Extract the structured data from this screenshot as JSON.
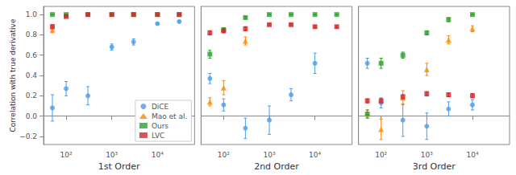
{
  "chart_data": [
    {
      "type": "scatter",
      "xlabel": "1st Order",
      "ylabel": "Correlation with true derivative",
      "log": "x",
      "grid": false,
      "legend": "lower right",
      "xlim": [
        32,
        65000
      ],
      "xticks": [
        {
          "value": 100,
          "label": "10²"
        },
        {
          "value": 1000,
          "label": "10³"
        },
        {
          "value": 10000,
          "label": "10⁴"
        }
      ],
      "ylim": [
        -0.28,
        1.08
      ],
      "yticks": [
        {
          "value": -0.2,
          "label": "−0.2"
        },
        {
          "value": 0,
          "label": "0.0"
        },
        0.2,
        0.4,
        0.6,
        0.8,
        {
          "value": 1,
          "label": "1.0"
        }
      ],
      "x": [
        50,
        100,
        300,
        1000,
        3000,
        10000,
        30000
      ],
      "series": [
        {
          "name": "DiCE",
          "color": "#4c9be8",
          "marker": "circle",
          "values": [
            0.08,
            0.27,
            0.2,
            0.68,
            0.73,
            0.91,
            0.93
          ],
          "errors": [
            0.13,
            0.07,
            0.09,
            0.03,
            0.03,
            0.01,
            0.01
          ]
        },
        {
          "name": "Mao et al.",
          "color": "#ff8800",
          "marker": "triangle",
          "values": [
            0.85,
            null,
            null,
            null,
            null,
            null,
            null
          ],
          "errors": [
            0.03,
            null,
            null,
            null,
            null,
            null,
            null
          ]
        },
        {
          "name": "Ours",
          "color": "#2ca02c",
          "marker": "square",
          "values": [
            1.0,
            1.0,
            1.0,
            1.0,
            1.0,
            1.0,
            1.0
          ],
          "errors": [
            0.002,
            0.001,
            0.001,
            0.0,
            0.0,
            0.0,
            0.0
          ]
        },
        {
          "name": "LVC",
          "color": "#d62728",
          "marker": "square",
          "values": [
            0.88,
            0.98,
            1.0,
            1.0,
            1.0,
            1.0,
            1.0
          ],
          "errors": [
            0.02,
            0.01,
            0.002,
            0.001,
            0.0,
            0.0,
            0.0
          ]
        }
      ]
    },
    {
      "type": "scatter",
      "xlabel": "2nd Order",
      "log": "x",
      "grid": false,
      "tick_labels": "x",
      "xlim": [
        32,
        65000
      ],
      "xticks": [
        {
          "value": 100,
          "label": "10²"
        },
        {
          "value": 1000,
          "label": "10³"
        },
        {
          "value": 10000,
          "label": "10⁴"
        }
      ],
      "ylim": [
        -0.28,
        1.08
      ],
      "yticks": [
        {
          "value": -0.2,
          "label": "−0.2"
        },
        {
          "value": 0,
          "label": "0.0"
        },
        0.2,
        0.4,
        0.6,
        0.8,
        {
          "value": 1,
          "label": "1.0"
        }
      ],
      "x": [
        50,
        100,
        300,
        1000,
        3000,
        10000,
        30000
      ],
      "series": [
        {
          "name": "DiCE",
          "color": "#4c9be8",
          "marker": "circle",
          "values": [
            0.37,
            0.11,
            -0.12,
            -0.04,
            0.21,
            0.52,
            null
          ],
          "errors": [
            0.05,
            0.06,
            0.1,
            0.14,
            0.06,
            0.1,
            null
          ]
        },
        {
          "name": "Mao et al.",
          "color": "#ff8800",
          "marker": "triangle",
          "values": [
            0.14,
            0.28,
            0.74,
            null,
            null,
            null,
            null
          ],
          "errors": [
            0.04,
            0.07,
            0.04,
            null,
            null,
            null,
            null
          ]
        },
        {
          "name": "Ours",
          "color": "#2ca02c",
          "marker": "square",
          "values": [
            0.61,
            0.85,
            0.97,
            1.0,
            1.0,
            1.0,
            1.0
          ],
          "errors": [
            0.04,
            0.02,
            0.01,
            0.001,
            0.001,
            0.001,
            0.001
          ]
        },
        {
          "name": "LVC",
          "color": "#d62728",
          "marker": "square",
          "values": [
            0.82,
            0.84,
            0.86,
            0.9,
            0.9,
            0.88,
            0.88
          ],
          "errors": [
            0.02,
            0.02,
            0.02,
            0.01,
            0.01,
            0.01,
            0.01
          ]
        }
      ]
    },
    {
      "type": "scatter",
      "xlabel": "3rd Order",
      "log": "x",
      "grid": false,
      "tick_labels": "x",
      "xlim": [
        32,
        65000
      ],
      "xticks": [
        {
          "value": 100,
          "label": "10²"
        },
        {
          "value": 1000,
          "label": "10³"
        },
        {
          "value": 10000,
          "label": "10⁴"
        }
      ],
      "ylim": [
        -0.28,
        1.08
      ],
      "yticks": [
        {
          "value": -0.2,
          "label": "−0.2"
        },
        {
          "value": 0,
          "label": "0.0"
        },
        0.2,
        0.4,
        0.6,
        0.8,
        {
          "value": 1,
          "label": "1.0"
        }
      ],
      "x": [
        50,
        100,
        300,
        1000,
        3000,
        10000,
        30000
      ],
      "series": [
        {
          "name": "DiCE",
          "color": "#4c9be8",
          "marker": "circle",
          "values": [
            0.52,
            0.13,
            -0.04,
            -0.1,
            0.07,
            0.11,
            null
          ],
          "errors": [
            0.05,
            0.05,
            0.16,
            0.13,
            0.07,
            0.05,
            null
          ]
        },
        {
          "name": "Mao et al.",
          "color": "#ff8800",
          "marker": "triangle",
          "values": [
            0.02,
            -0.13,
            0.18,
            0.46,
            0.75,
            0.86,
            null
          ],
          "errors": [
            0.04,
            0.1,
            0.07,
            0.06,
            0.04,
            0.03,
            null
          ]
        },
        {
          "name": "Ours",
          "color": "#2ca02c",
          "marker": "square",
          "values": [
            0.02,
            0.52,
            0.6,
            0.82,
            0.95,
            1.0,
            null
          ],
          "errors": [
            0.04,
            0.05,
            0.03,
            0.02,
            0.02,
            0.001,
            null
          ]
        },
        {
          "name": "LVC",
          "color": "#d62728",
          "marker": "square",
          "values": [
            0.15,
            0.15,
            0.19,
            0.22,
            0.21,
            0.2,
            null
          ],
          "errors": [
            0.02,
            0.02,
            0.02,
            0.02,
            0.02,
            0.02,
            null
          ]
        }
      ]
    }
  ]
}
